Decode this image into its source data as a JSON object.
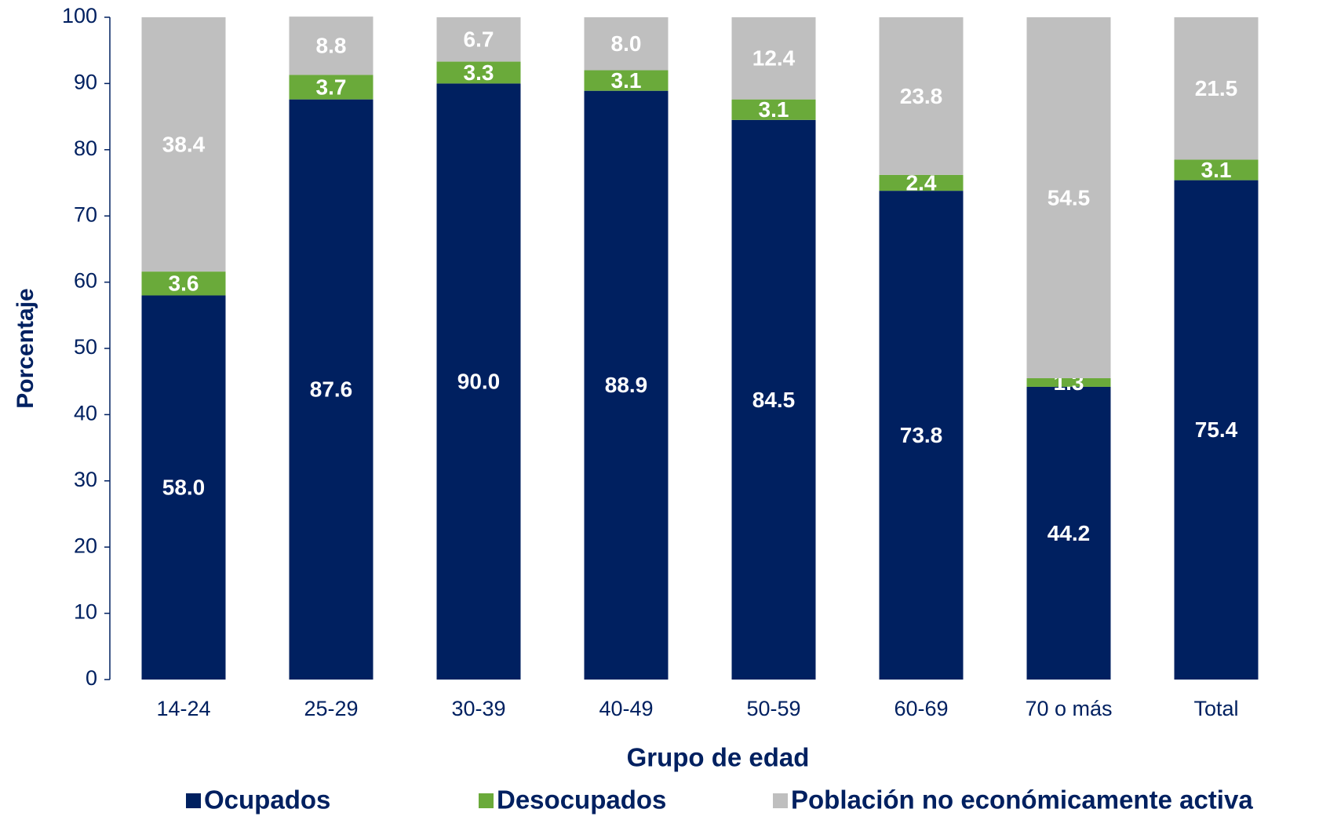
{
  "chart_data": {
    "type": "stacked_bar",
    "x_label": "Grupo de edad",
    "y_label": "Porcentaje",
    "categories": [
      "14-24",
      "25-29",
      "30-39",
      "40-49",
      "50-59",
      "60-69",
      "70 o más",
      "Total"
    ],
    "series": [
      {
        "name": "Ocupados",
        "color": "#002060",
        "values": [
          58.0,
          87.6,
          90.0,
          88.9,
          84.5,
          73.8,
          44.2,
          75.4
        ],
        "value_labels": [
          "58.0",
          "87.6",
          "90.0",
          "88.9",
          "84.5",
          "73.8",
          "44.2",
          "75.4"
        ]
      },
      {
        "name": "Desocupados",
        "color": "#6aaa3a",
        "values": [
          3.6,
          3.7,
          3.3,
          3.1,
          3.1,
          2.4,
          1.3,
          3.1
        ],
        "value_labels": [
          "3.6",
          "3.7",
          "3.3",
          "3.1",
          "3.1",
          "2.4",
          "1.3",
          "3.1"
        ]
      },
      {
        "name": "Población no económicamente activa",
        "color": "#bfbfbf",
        "values": [
          38.4,
          8.8,
          6.7,
          8.0,
          12.4,
          23.8,
          54.5,
          21.5
        ],
        "value_labels": [
          "38.4",
          "8.8",
          "6.7",
          "8.0",
          "12.4",
          "23.8",
          "54.5",
          "21.5"
        ]
      }
    ],
    "ylim": [
      0,
      100
    ],
    "yticks": [
      0,
      10,
      20,
      30,
      40,
      50,
      60,
      70,
      80,
      90,
      100
    ],
    "grid": false,
    "legend": "bottom"
  }
}
